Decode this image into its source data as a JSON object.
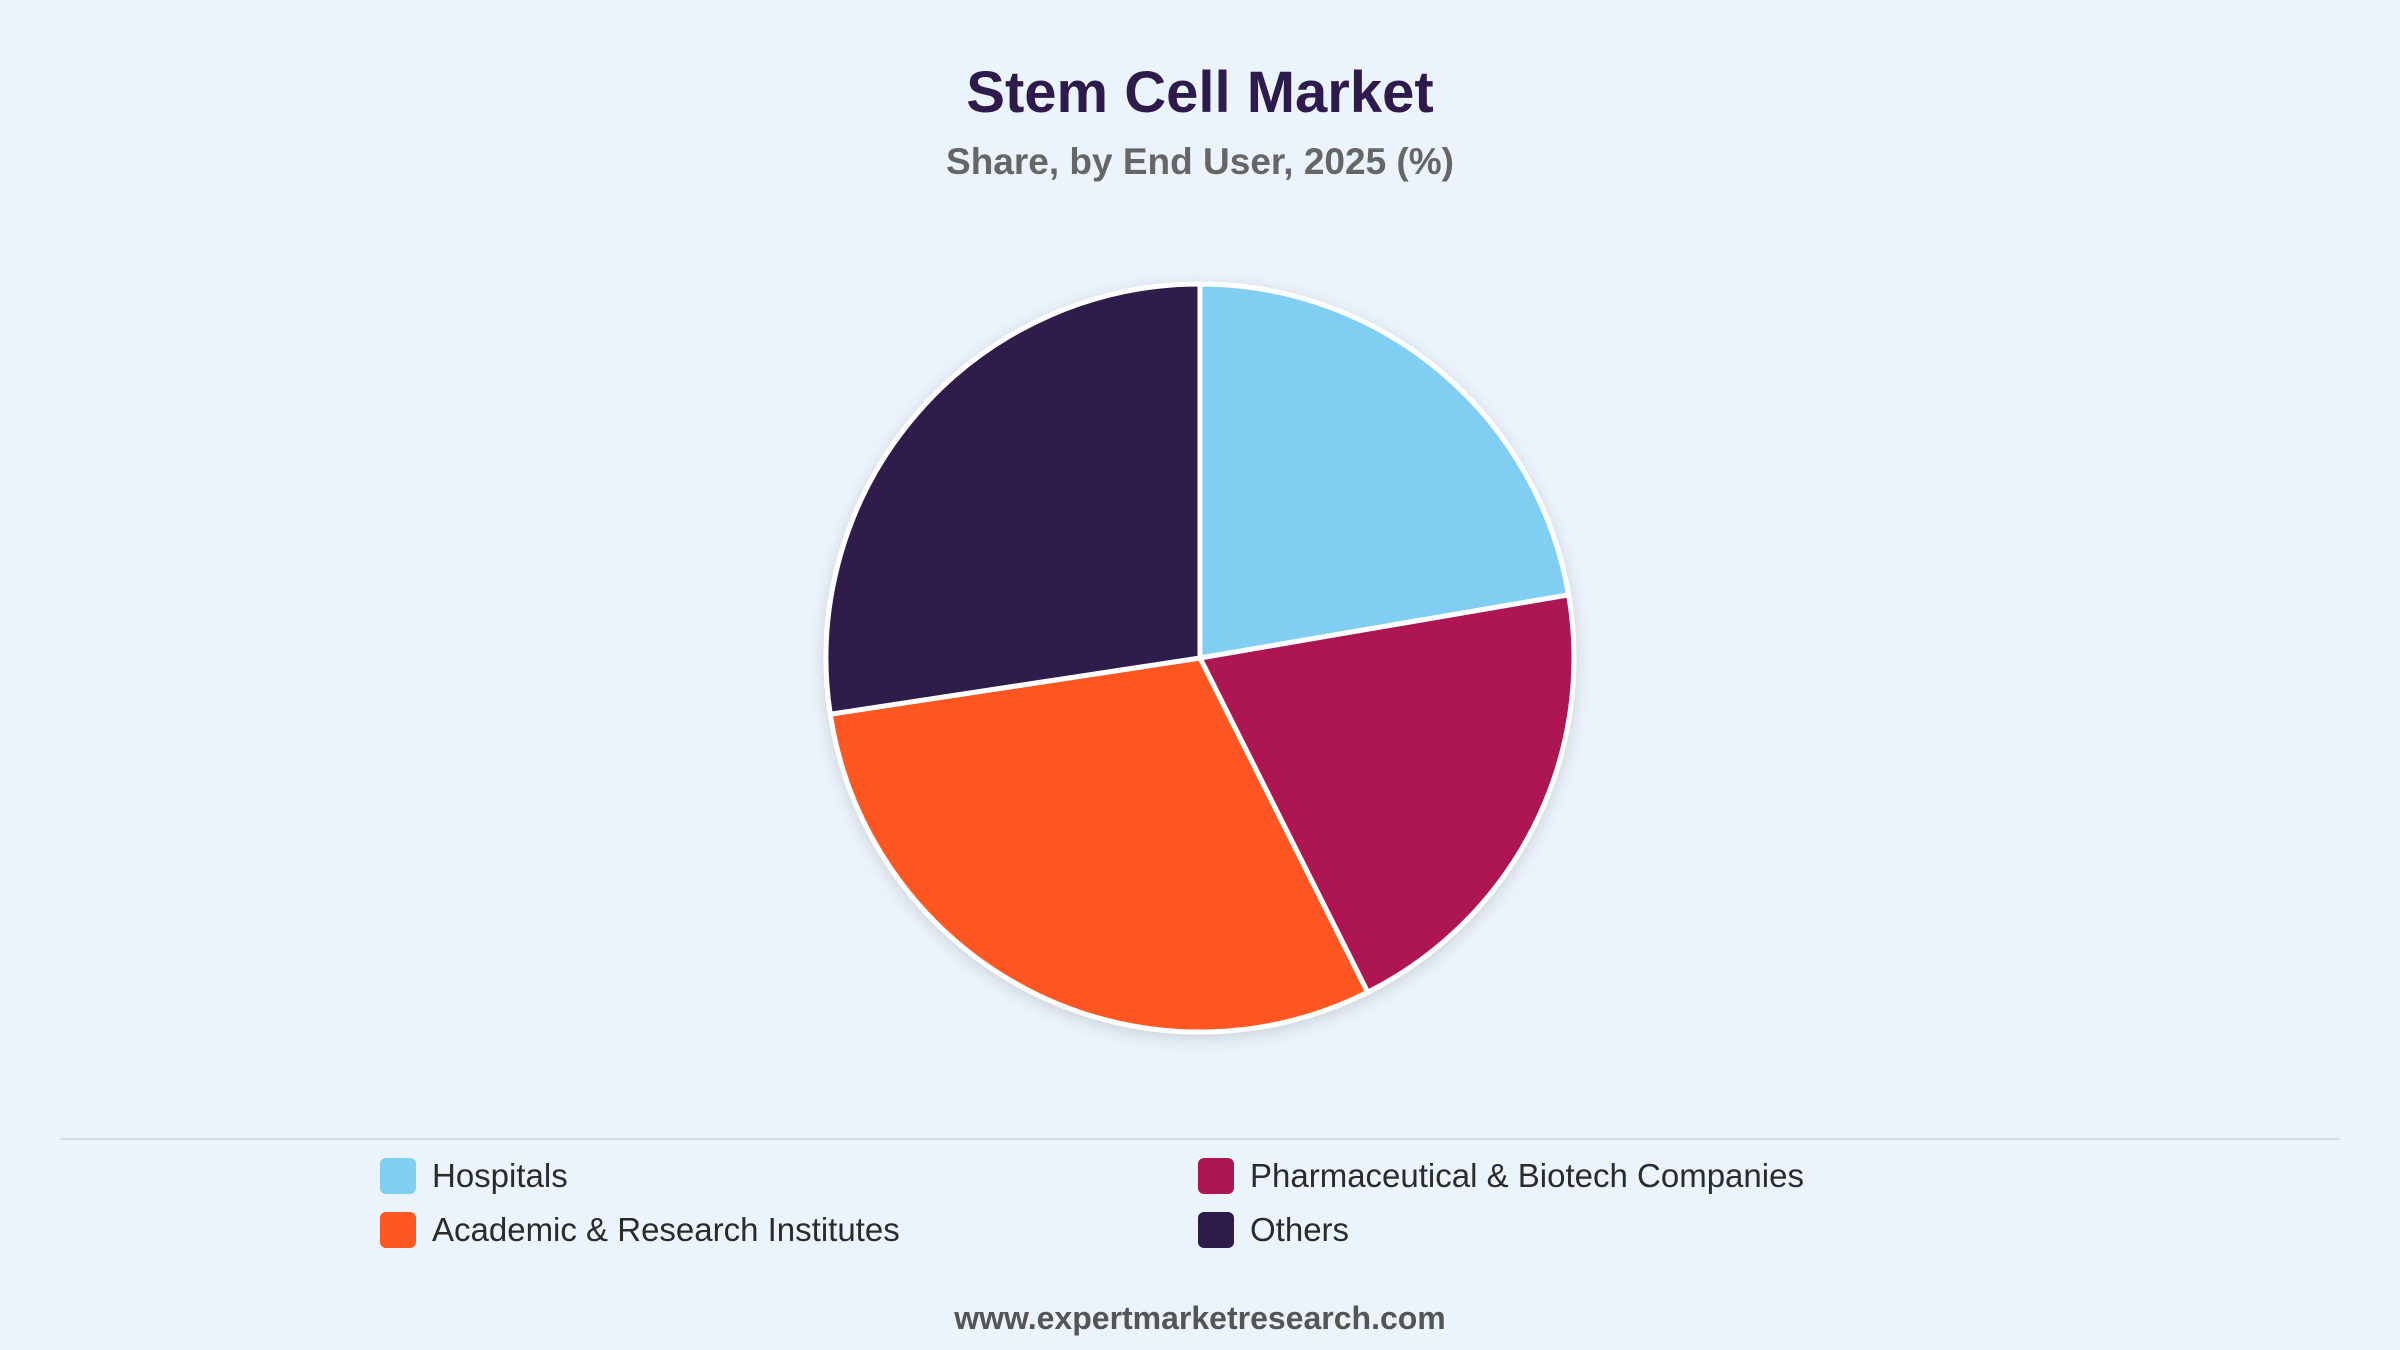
{
  "chart_data": {
    "type": "pie",
    "title": "Stem Cell Market",
    "subtitle": "Share, by End User, 2025 (%)",
    "slices": [
      {
        "name": "Hospitals",
        "value": 22.3,
        "color": "#80CFF2"
      },
      {
        "name": "Pharmaceutical & Biotech Companies",
        "value": 20.3,
        "color": "#AD1652"
      },
      {
        "name": "Academic & Research Institutes",
        "value": 30.0,
        "color": "#FF5722"
      },
      {
        "name": "Others",
        "value": 27.4,
        "color": "#2E1A4B"
      }
    ],
    "legend_position": "bottom"
  },
  "source": "www.expertmarketresearch.com"
}
